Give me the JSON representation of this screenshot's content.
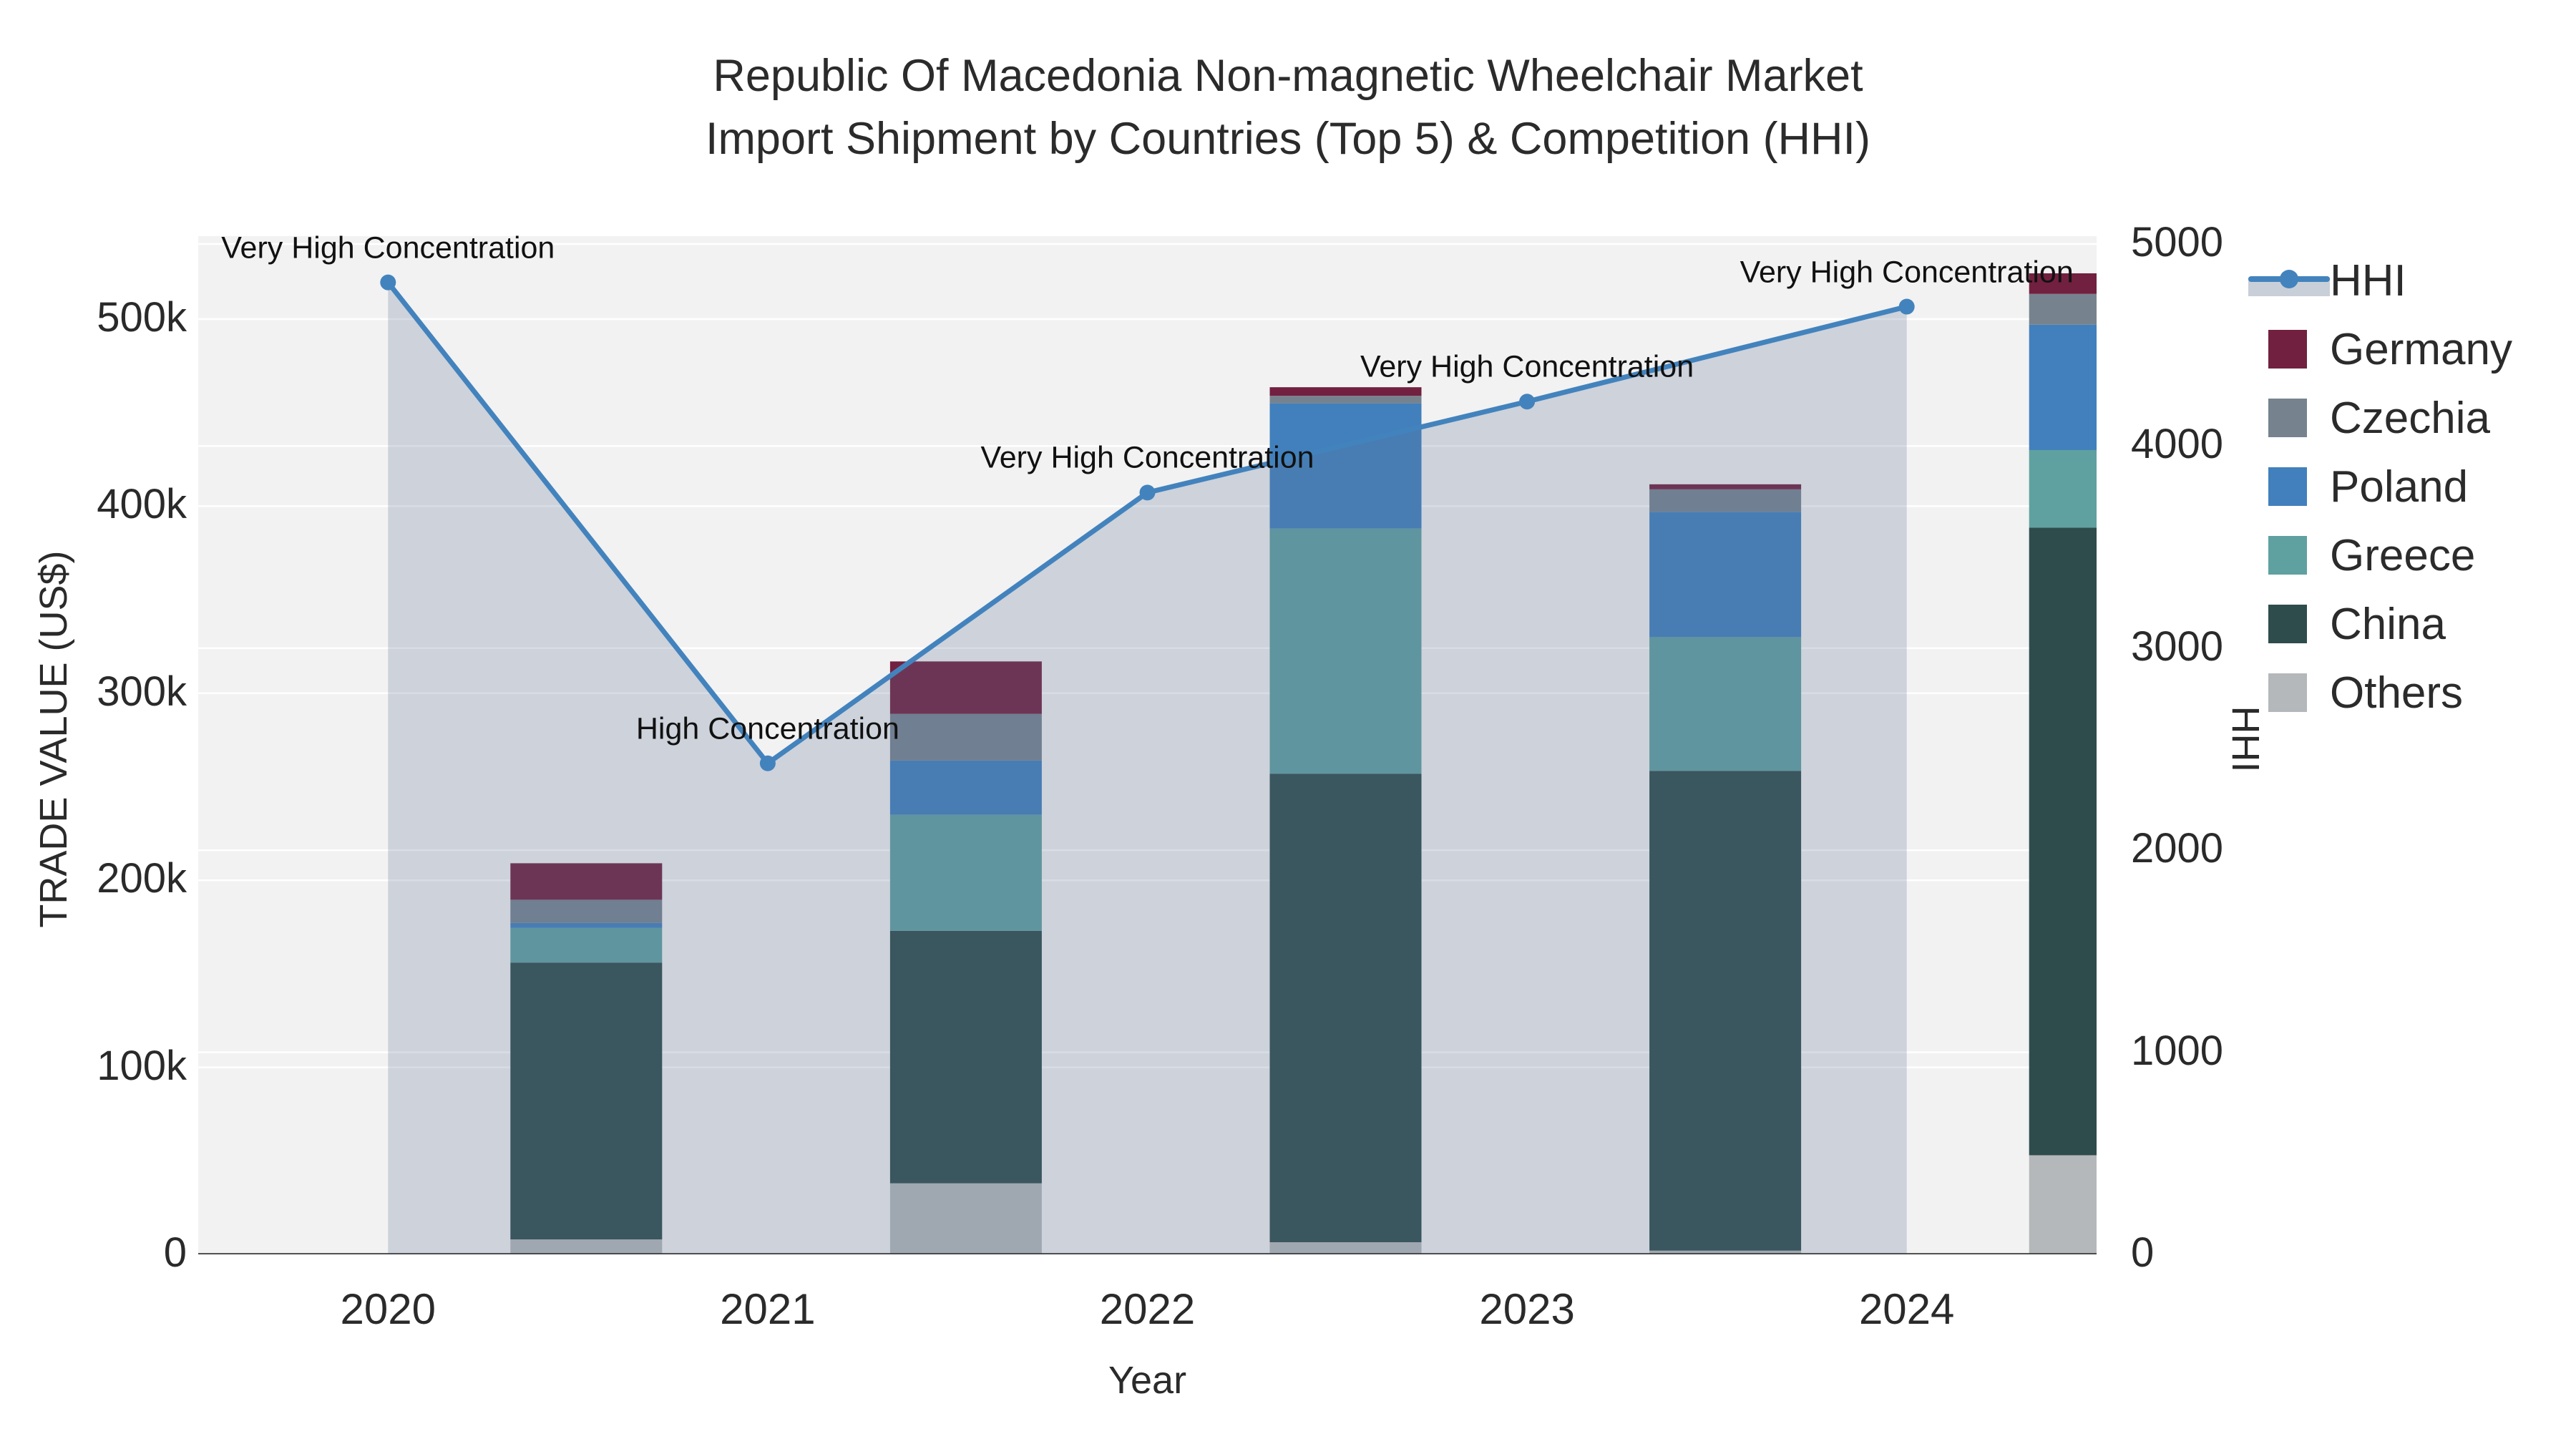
{
  "title": {
    "line1": "Republic Of Macedonia Non-magnetic Wheelchair Market",
    "line2": "Import Shipment by Countries (Top 5) & Competition (HHI)"
  },
  "chart_data": {
    "type": "bar",
    "subtype": "stacked-bar-with-line",
    "categories": [
      "2020",
      "2021",
      "2022",
      "2023",
      "2024"
    ],
    "series": [
      {
        "name": "Others",
        "color": "#b5b8ba",
        "values": [
          8000,
          38000,
          6500,
          2000,
          53000
        ]
      },
      {
        "name": "China",
        "color": "#2e4c4b",
        "values": [
          148000,
          135000,
          250500,
          256500,
          335500
        ]
      },
      {
        "name": "Greece",
        "color": "#5fa1a0",
        "values": [
          18500,
          62000,
          131000,
          71500,
          41500
        ]
      },
      {
        "name": "Poland",
        "color": "#4180bc",
        "values": [
          2700,
          29000,
          67000,
          67000,
          67000
        ]
      },
      {
        "name": "Czechia",
        "color": "#76838f",
        "values": [
          12400,
          25000,
          4000,
          12000,
          16500
        ]
      },
      {
        "name": "Germany",
        "color": "#72203f",
        "values": [
          19500,
          28000,
          4600,
          2700,
          11000
        ]
      }
    ],
    "line_series": {
      "name": "HHI",
      "color": "#4383bd",
      "area_fill": "rgba(94,114,150,0.25)",
      "values": [
        4810,
        2430,
        3770,
        4220,
        4690
      ]
    },
    "annotations": [
      {
        "category": "2020",
        "text": "Very High Concentration"
      },
      {
        "category": "2021",
        "text": "High Concentration"
      },
      {
        "category": "2022",
        "text": "Very High Concentration"
      },
      {
        "category": "2023",
        "text": "Very High Concentration"
      },
      {
        "category": "2024",
        "text": "Very High Concentration"
      }
    ],
    "x_axis": {
      "title": "Year"
    },
    "y_left": {
      "title": "TRADE VALUE (US$)",
      "tick_values": [
        0,
        100000,
        200000,
        300000,
        400000,
        500000
      ],
      "tick_labels": [
        "0",
        "100k",
        "200k",
        "300k",
        "400k",
        "500k"
      ],
      "range": [
        0,
        544000
      ]
    },
    "y_right": {
      "title": "HHI",
      "tick_values": [
        0,
        1000,
        2000,
        3000,
        4000,
        5000
      ],
      "tick_labels": [
        "0",
        "1000",
        "2000",
        "3000",
        "4000",
        "5000"
      ],
      "range": [
        0,
        5040
      ]
    },
    "legend_order": [
      "HHI",
      "Germany",
      "Czechia",
      "Poland",
      "Greece",
      "China",
      "Others"
    ],
    "layout_hints": {
      "grid": "on",
      "grid_color": "#ffffff",
      "plot_bg": "#f2f2f2",
      "axis_line_color": "#3a3a3a",
      "legend_position": "right"
    }
  }
}
